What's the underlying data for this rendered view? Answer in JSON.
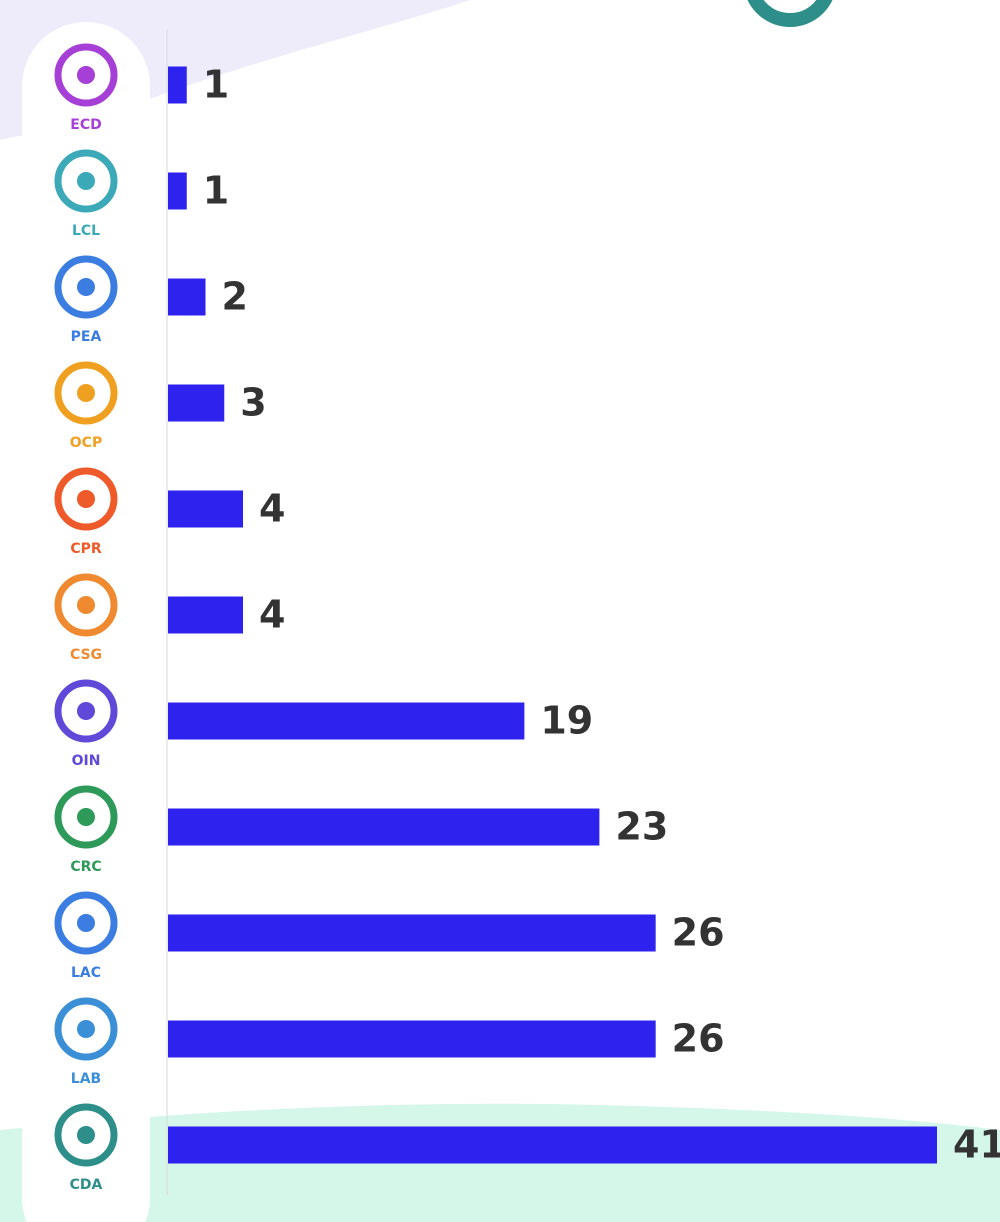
{
  "chart_data": {
    "type": "bar",
    "orientation": "horizontal",
    "categories": [
      "ECD",
      "LCL",
      "PEA",
      "OCP",
      "CPR",
      "CSG",
      "OIN",
      "CRC",
      "LAC",
      "LAB",
      "CDA"
    ],
    "values": [
      1,
      1,
      2,
      3,
      4,
      4,
      19,
      23,
      26,
      26,
      41
    ],
    "color": "#2e22ee",
    "category_colors": [
      "#a63fd6",
      "#3ba9b8",
      "#3b7de0",
      "#f0a020",
      "#ee5a2a",
      "#f08a30",
      "#6048d8",
      "#2e9a5a",
      "#3b7de0",
      "#3b8fd6",
      "#2e8f8a"
    ]
  }
}
